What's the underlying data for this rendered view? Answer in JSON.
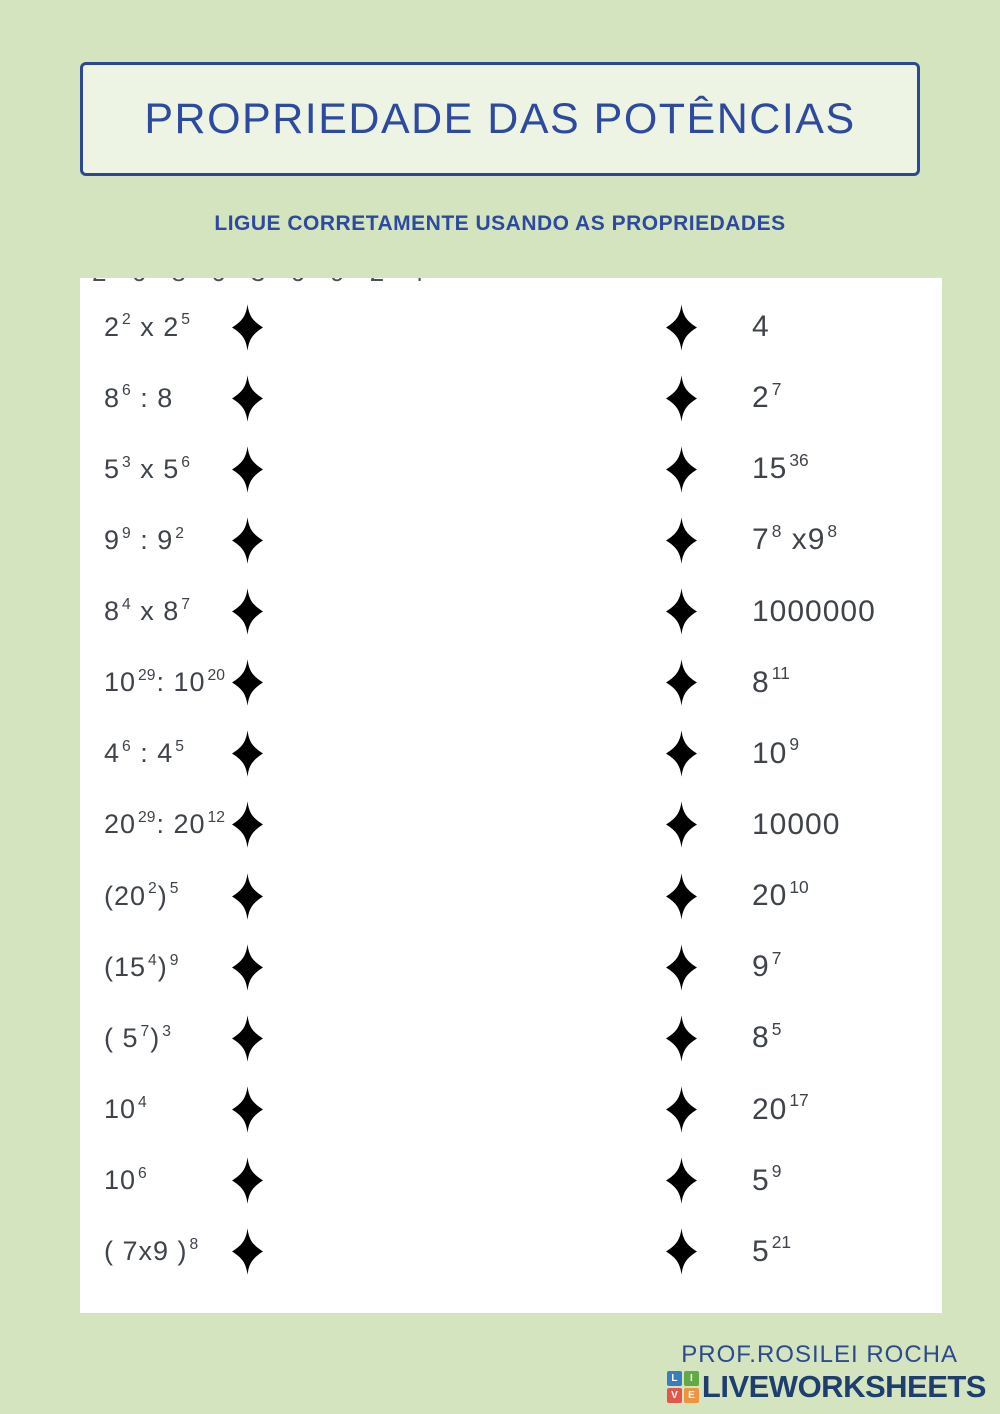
{
  "header": {
    "title": "PROPRIEDADE DAS POTÊNCIAS",
    "subtitle": "LIGUE CORRETAMENTE USANDO AS PROPRIEDADES",
    "accent_color": "#2e4a9e"
  },
  "worksheet": {
    "cropped_line": "2 6 8 6 3 6 9 2 4",
    "rows": [
      {
        "left": [
          [
            "b",
            "2"
          ],
          [
            "s",
            "2"
          ],
          [
            "b",
            " x 2"
          ],
          [
            "s",
            "5"
          ]
        ],
        "right": [
          [
            "b",
            "4"
          ]
        ]
      },
      {
        "left": [
          [
            "b",
            "8"
          ],
          [
            "s",
            "6"
          ],
          [
            "b",
            " : 8"
          ]
        ],
        "right": [
          [
            "b",
            "2"
          ],
          [
            "s",
            "7"
          ]
        ]
      },
      {
        "left": [
          [
            "b",
            "5"
          ],
          [
            "s",
            "3"
          ],
          [
            "b",
            " x 5"
          ],
          [
            "s",
            "6"
          ]
        ],
        "right": [
          [
            "b",
            "15"
          ],
          [
            "s",
            "36"
          ]
        ]
      },
      {
        "left": [
          [
            "b",
            "9"
          ],
          [
            "s",
            "9"
          ],
          [
            "b",
            " : 9"
          ],
          [
            "s",
            "2"
          ]
        ],
        "right": [
          [
            "b",
            "7"
          ],
          [
            "s",
            "8"
          ],
          [
            "b",
            " x9"
          ],
          [
            "s",
            "8"
          ]
        ]
      },
      {
        "left": [
          [
            "b",
            "8"
          ],
          [
            "s",
            "4"
          ],
          [
            "b",
            " x 8"
          ],
          [
            "s",
            "7"
          ]
        ],
        "right": [
          [
            "b",
            "1000000"
          ]
        ]
      },
      {
        "left": [
          [
            "b",
            "10"
          ],
          [
            "s",
            "29"
          ],
          [
            "b",
            ": 10"
          ],
          [
            "s",
            "20"
          ]
        ],
        "right": [
          [
            "b",
            "8"
          ],
          [
            "s",
            "11"
          ]
        ]
      },
      {
        "left": [
          [
            "b",
            "4"
          ],
          [
            "s",
            "6"
          ],
          [
            "b",
            " : 4"
          ],
          [
            "s",
            "5"
          ]
        ],
        "right": [
          [
            "b",
            "10"
          ],
          [
            "s",
            "9"
          ]
        ]
      },
      {
        "left": [
          [
            "b",
            "20"
          ],
          [
            "s",
            "29"
          ],
          [
            "b",
            ": 20"
          ],
          [
            "s",
            "12"
          ]
        ],
        "right": [
          [
            "b",
            "10000"
          ]
        ]
      },
      {
        "left": [
          [
            "b",
            "(20"
          ],
          [
            "s",
            "2"
          ],
          [
            "b",
            ")"
          ],
          [
            "s",
            "5"
          ]
        ],
        "right": [
          [
            "b",
            "20"
          ],
          [
            "s",
            "10"
          ]
        ]
      },
      {
        "left": [
          [
            "b",
            "(15"
          ],
          [
            "s",
            "4"
          ],
          [
            "b",
            ")"
          ],
          [
            "s",
            "9"
          ]
        ],
        "right": [
          [
            "b",
            "9"
          ],
          [
            "s",
            "7"
          ]
        ]
      },
      {
        "left": [
          [
            "b",
            "( 5"
          ],
          [
            "s",
            "7"
          ],
          [
            "b",
            ")"
          ],
          [
            "s",
            "3"
          ]
        ],
        "right": [
          [
            "b",
            "8"
          ],
          [
            "s",
            "5"
          ]
        ]
      },
      {
        "left": [
          [
            "b",
            "10"
          ],
          [
            "s",
            "4"
          ]
        ],
        "right": [
          [
            "b",
            "20"
          ],
          [
            "s",
            "17"
          ]
        ]
      },
      {
        "left": [
          [
            "b",
            "10"
          ],
          [
            "s",
            "6"
          ]
        ],
        "right": [
          [
            "b",
            "5"
          ],
          [
            "s",
            "9"
          ]
        ]
      },
      {
        "left": [
          [
            "b",
            "( 7x9 )"
          ],
          [
            "s",
            "8"
          ]
        ],
        "right": [
          [
            "b",
            "5"
          ],
          [
            "s",
            "21"
          ]
        ]
      }
    ]
  },
  "footer": {
    "author": "PROF.ROSILEI ROCHA",
    "logo_text": "LIVEWORKSHEETS",
    "logo_tiles": [
      {
        "letter": "L",
        "color": "#3a7dbf"
      },
      {
        "letter": "I",
        "color": "#63aa47"
      },
      {
        "letter": "V",
        "color": "#e2574c"
      },
      {
        "letter": "E",
        "color": "#f0923e"
      }
    ]
  }
}
